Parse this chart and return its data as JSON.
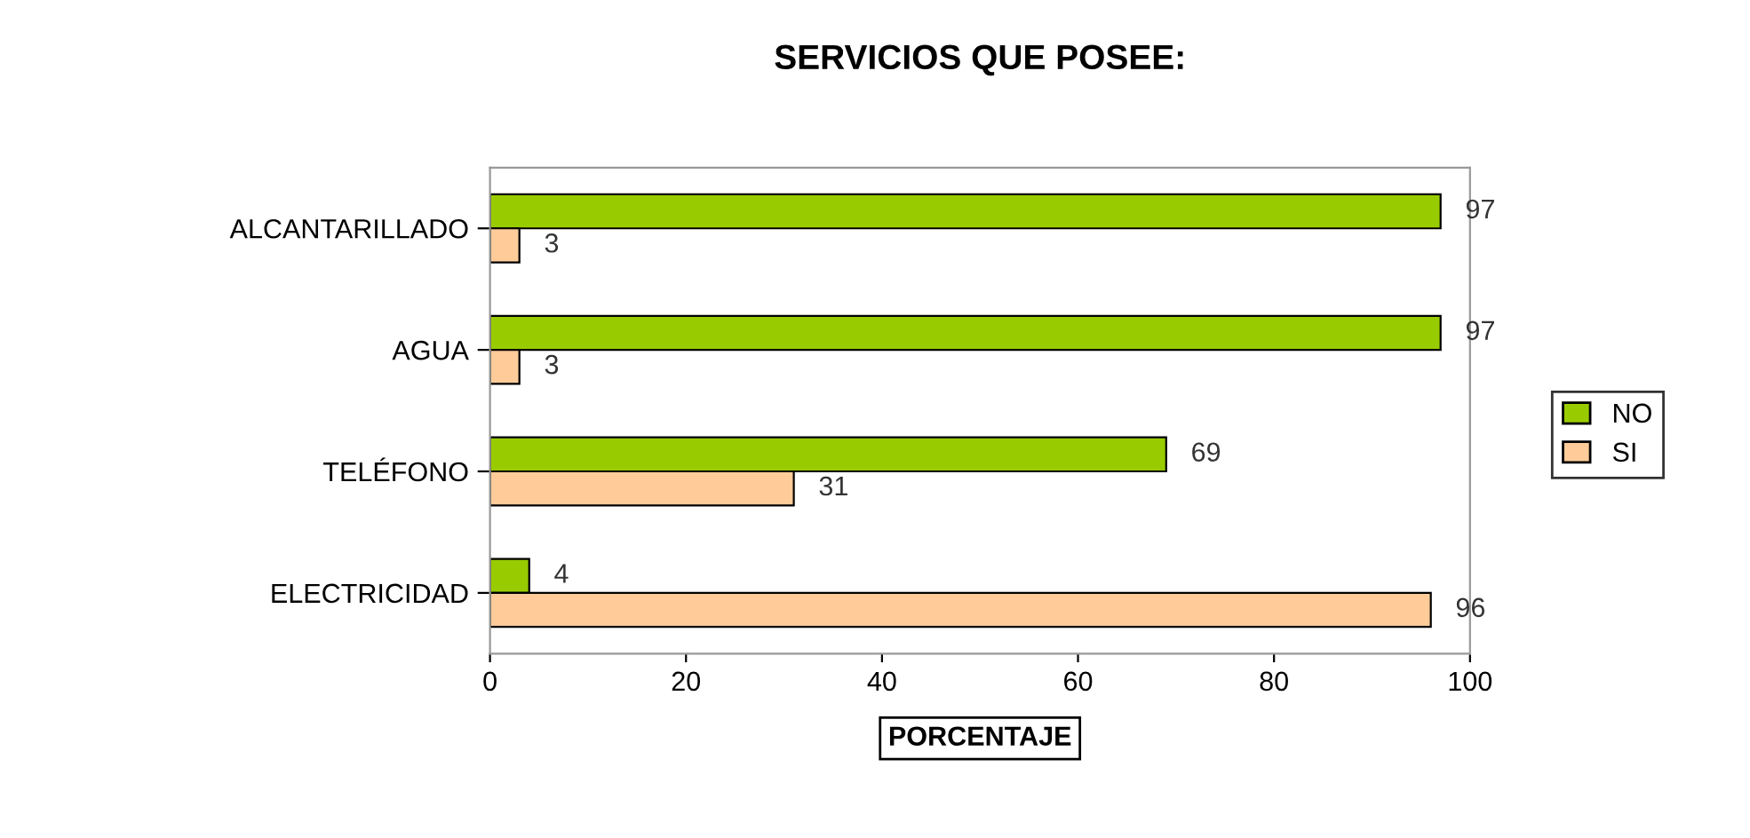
{
  "chart_data": {
    "type": "bar",
    "orientation": "horizontal",
    "title": "SERVICIOS QUE POSEE:",
    "xlabel": "PORCENTAJE",
    "categories": [
      "ALCANTARILLADO",
      "AGUA",
      "TELÉFONO",
      "ELECTRICIDAD"
    ],
    "series": [
      {
        "name": "NO",
        "color": "#99cc00",
        "values": [
          97,
          97,
          69,
          4
        ]
      },
      {
        "name": "SI",
        "color": "#ffcc99",
        "values": [
          3,
          3,
          31,
          96
        ]
      }
    ],
    "xlim": [
      0,
      100
    ],
    "xticks": [
      0,
      20,
      40,
      60,
      80,
      100
    ],
    "grid": false,
    "legend": "right",
    "data_labels": true
  }
}
